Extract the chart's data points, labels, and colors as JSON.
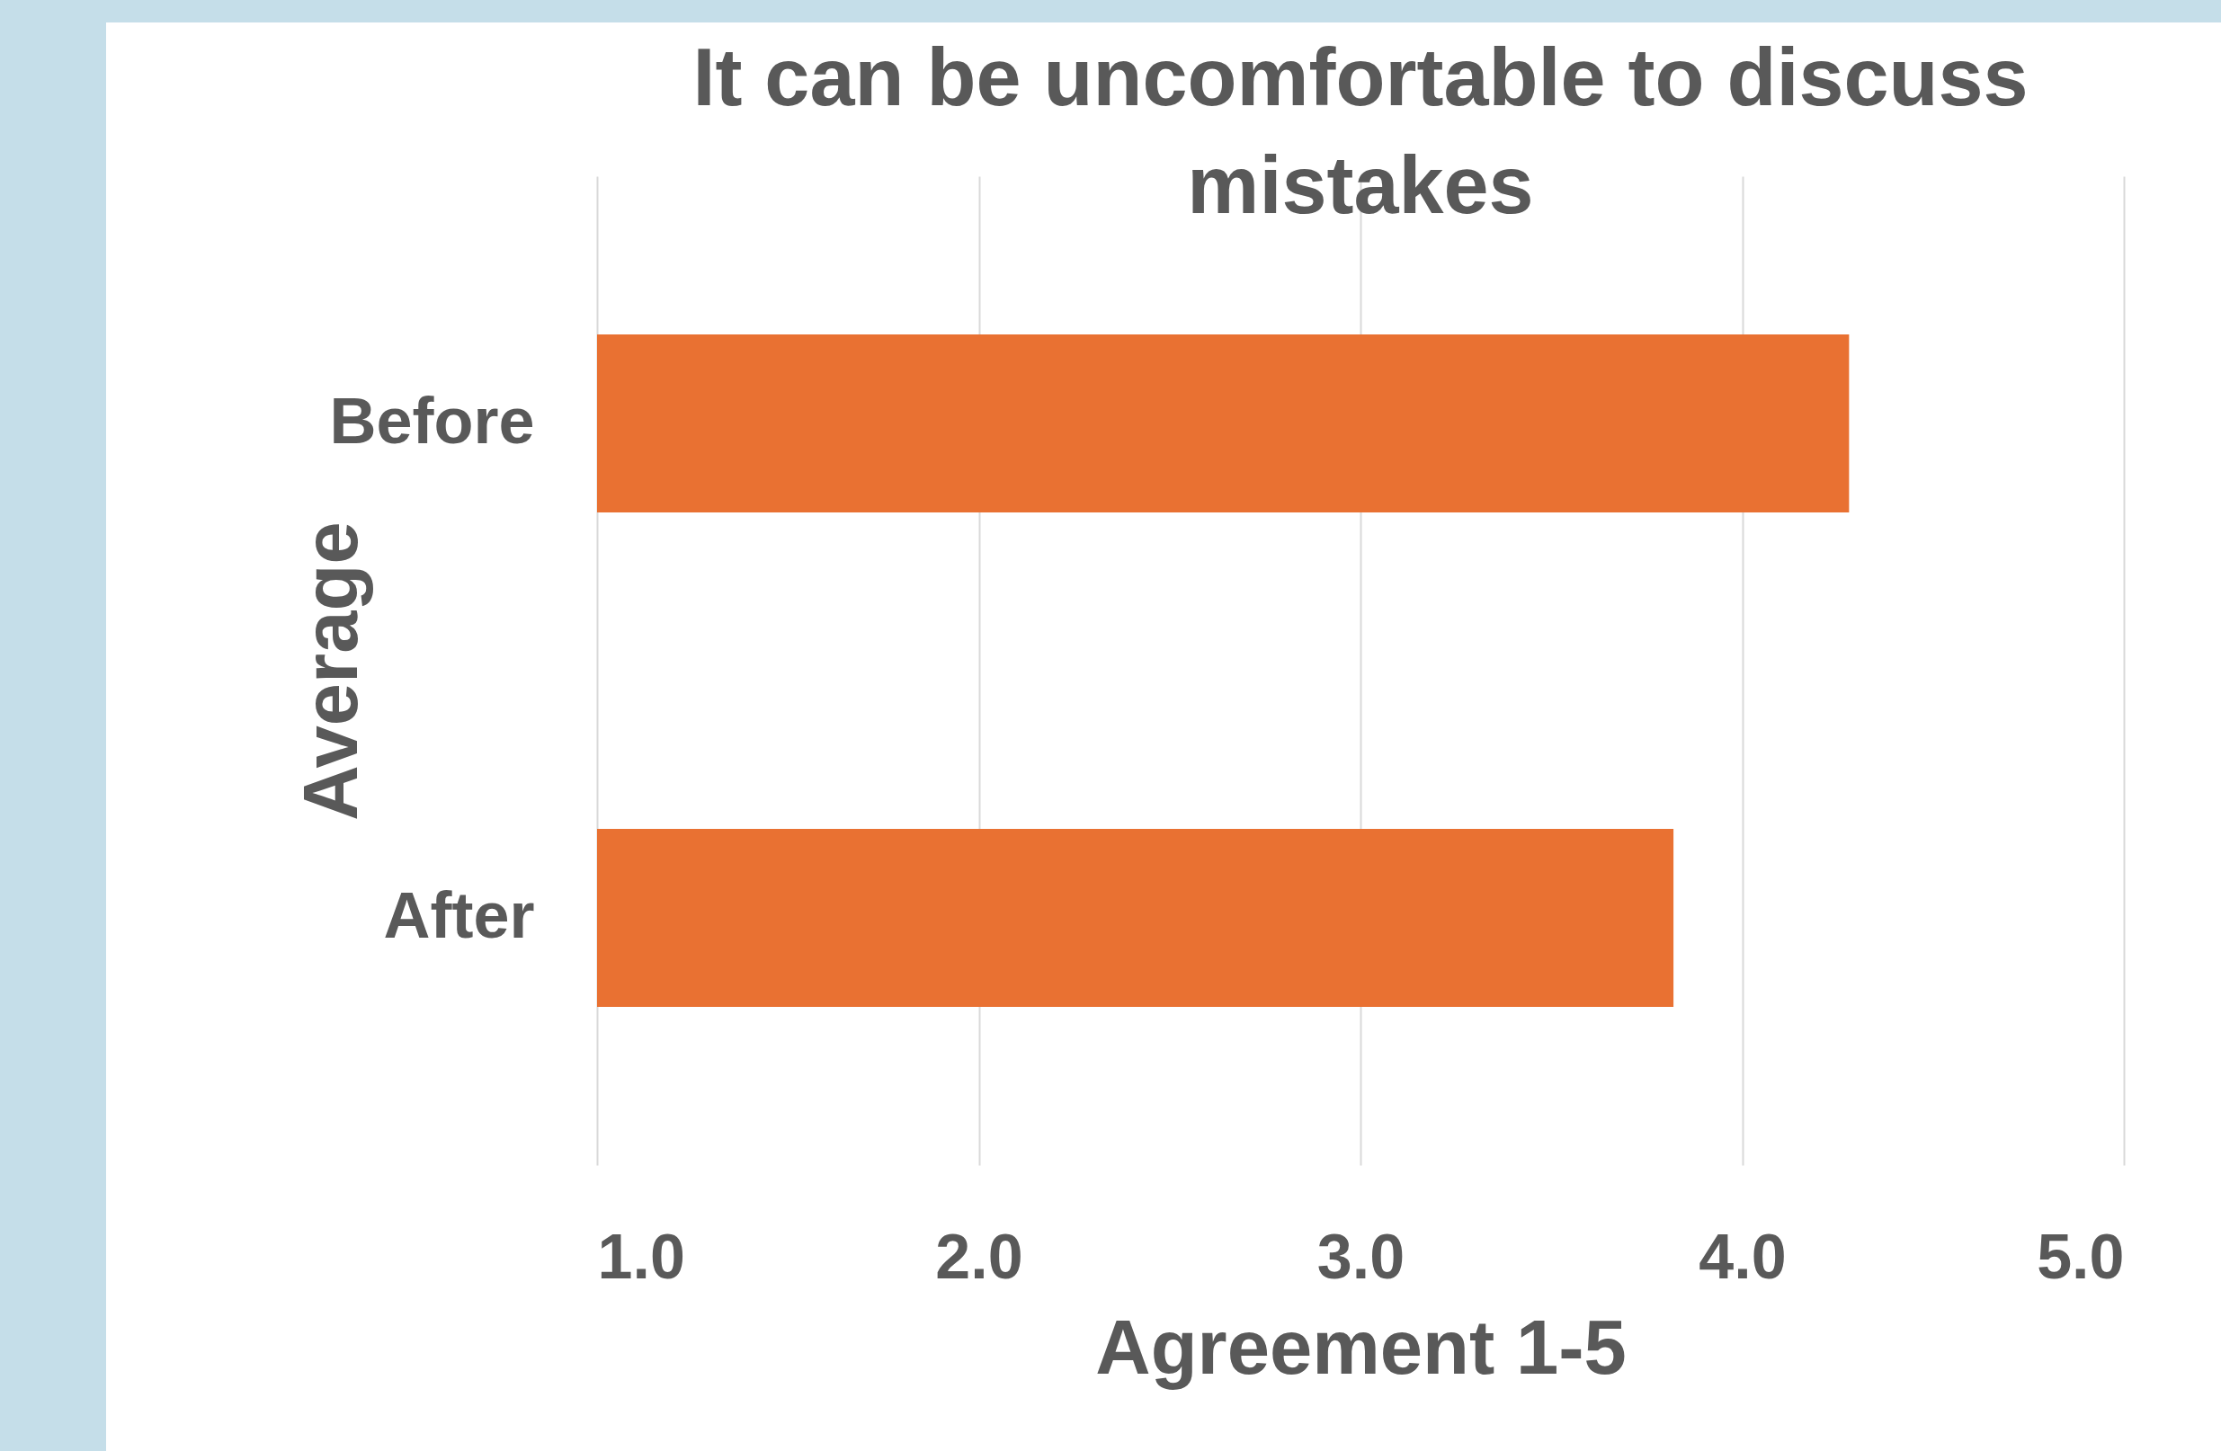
{
  "chart_data": {
    "type": "bar",
    "orientation": "horizontal",
    "title": "It can be uncomfortable to discuss mistakes",
    "xlabel": "Agreement 1-5",
    "ylabel": "Average",
    "categories": [
      "Before",
      "After"
    ],
    "values": [
      4.28,
      3.82
    ],
    "color": "#e97132",
    "xlim": [
      1,
      5
    ],
    "xticks": [
      {
        "value": 1,
        "label": "1.0"
      },
      {
        "value": 2,
        "label": "2.0"
      },
      {
        "value": 3,
        "label": "3.0"
      },
      {
        "value": 4,
        "label": "4.0"
      },
      {
        "value": 5,
        "label": "5.0"
      }
    ],
    "grid": "x"
  }
}
